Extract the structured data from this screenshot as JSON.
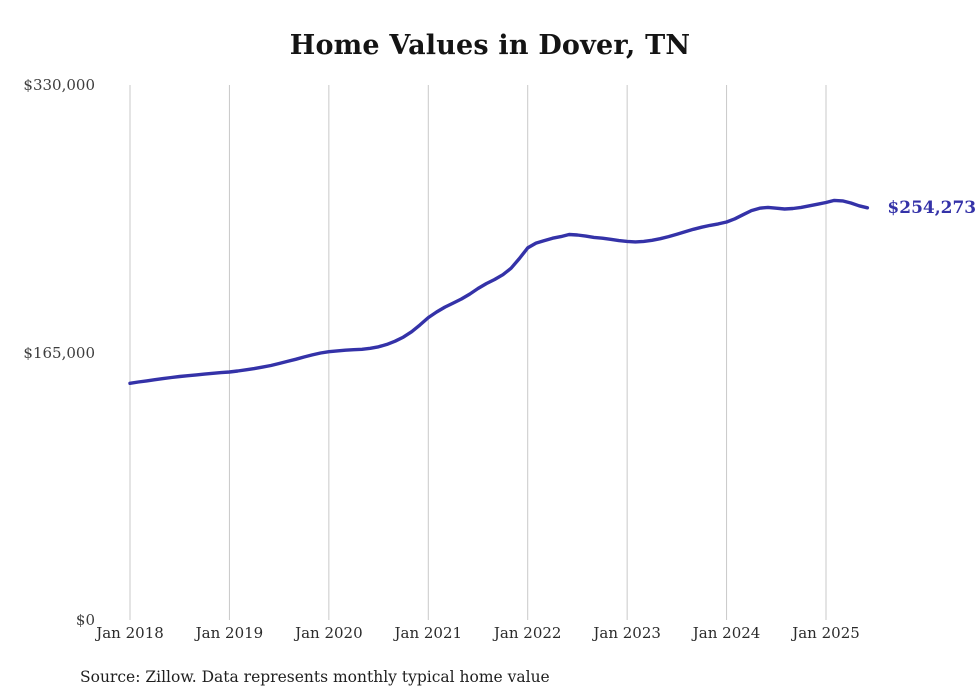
{
  "chart_data": {
    "type": "line",
    "title": "Home Values in Dover, TN",
    "ylabel": "",
    "xlabel": "",
    "ylim": [
      0,
      330000
    ],
    "grid": "vertical-only",
    "legend_position": "none",
    "line_color": "#3432a8",
    "gridline_color": "#c9c9c9",
    "y_tick_labels": [
      "$330,000",
      "$165,000",
      "$0"
    ],
    "x_tick_labels": [
      "Jan 2018",
      "Jan 2019",
      "Jan 2020",
      "Jan 2021",
      "Jan 2022",
      "Jan 2023",
      "Jan 2024",
      "Jan 2025"
    ],
    "end_label": "$254,273",
    "source_note": "Source: Zillow. Data represents monthly typical home value",
    "start_month": "2018-01",
    "series": [
      {
        "name": "Monthly typical home value",
        "values": [
          146000,
          146800,
          147500,
          148200,
          148900,
          149600,
          150200,
          150700,
          151200,
          151700,
          152200,
          152600,
          153000,
          153600,
          154300,
          155100,
          156000,
          157000,
          158200,
          159500,
          160800,
          162200,
          163500,
          164700,
          165500,
          166000,
          166400,
          166700,
          167000,
          167600,
          168500,
          170000,
          172000,
          174500,
          177800,
          182000,
          186500,
          190000,
          193000,
          195500,
          198000,
          201000,
          204500,
          207500,
          210000,
          213000,
          217000,
          223000,
          229500,
          232500,
          234000,
          235500,
          236500,
          237800,
          237500,
          236800,
          236000,
          235500,
          234800,
          234000,
          233500,
          233200,
          233500,
          234200,
          235200,
          236500,
          238000,
          239500,
          241000,
          242300,
          243400,
          244300,
          245500,
          247500,
          250000,
          252500,
          254000,
          254500,
          254000,
          253500,
          253800,
          254500,
          255500,
          256500,
          257500,
          258800,
          258500,
          257200,
          255500,
          254273
        ]
      }
    ]
  }
}
